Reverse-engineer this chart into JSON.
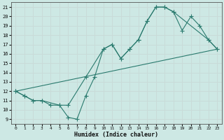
{
  "title": "",
  "xlabel": "Humidex (Indice chaleur)",
  "ylabel": "",
  "bg_color": "#cde8e4",
  "line_color": "#2a7a6e",
  "grid_color": "#b8d8d4",
  "xlim": [
    -0.5,
    23.5
  ],
  "ylim": [
    8.5,
    21.5
  ],
  "xticks": [
    0,
    1,
    2,
    3,
    4,
    5,
    6,
    7,
    8,
    9,
    10,
    11,
    12,
    13,
    14,
    15,
    16,
    17,
    18,
    19,
    20,
    21,
    22,
    23
  ],
  "yticks": [
    9,
    10,
    11,
    12,
    13,
    14,
    15,
    16,
    17,
    18,
    19,
    20,
    21
  ],
  "line1_x": [
    0,
    1,
    2,
    3,
    4,
    5,
    6,
    7,
    8,
    9,
    10,
    11,
    12,
    13,
    14,
    15,
    16,
    17,
    18,
    19,
    20,
    21,
    22,
    23
  ],
  "line1_y": [
    12,
    11.5,
    11,
    11,
    10.5,
    10.5,
    9.2,
    9.0,
    11.5,
    13.5,
    16.5,
    17.0,
    15.5,
    16.5,
    17.5,
    19.5,
    21.0,
    21.0,
    20.5,
    18.5,
    20.0,
    19.0,
    17.5,
    16.5
  ],
  "line2_x": [
    0,
    1,
    2,
    3,
    5,
    6,
    8,
    10,
    11,
    12,
    13,
    14,
    15,
    16,
    17,
    18,
    22,
    23
  ],
  "line2_y": [
    12,
    11.5,
    11,
    11,
    10.5,
    10.5,
    13.5,
    16.5,
    17.0,
    15.5,
    16.5,
    17.5,
    19.5,
    21.0,
    21.0,
    20.5,
    17.5,
    16.5
  ],
  "line3_x": [
    0,
    23
  ],
  "line3_y": [
    12,
    16.5
  ],
  "markersize": 2.5,
  "linewidth": 0.8
}
